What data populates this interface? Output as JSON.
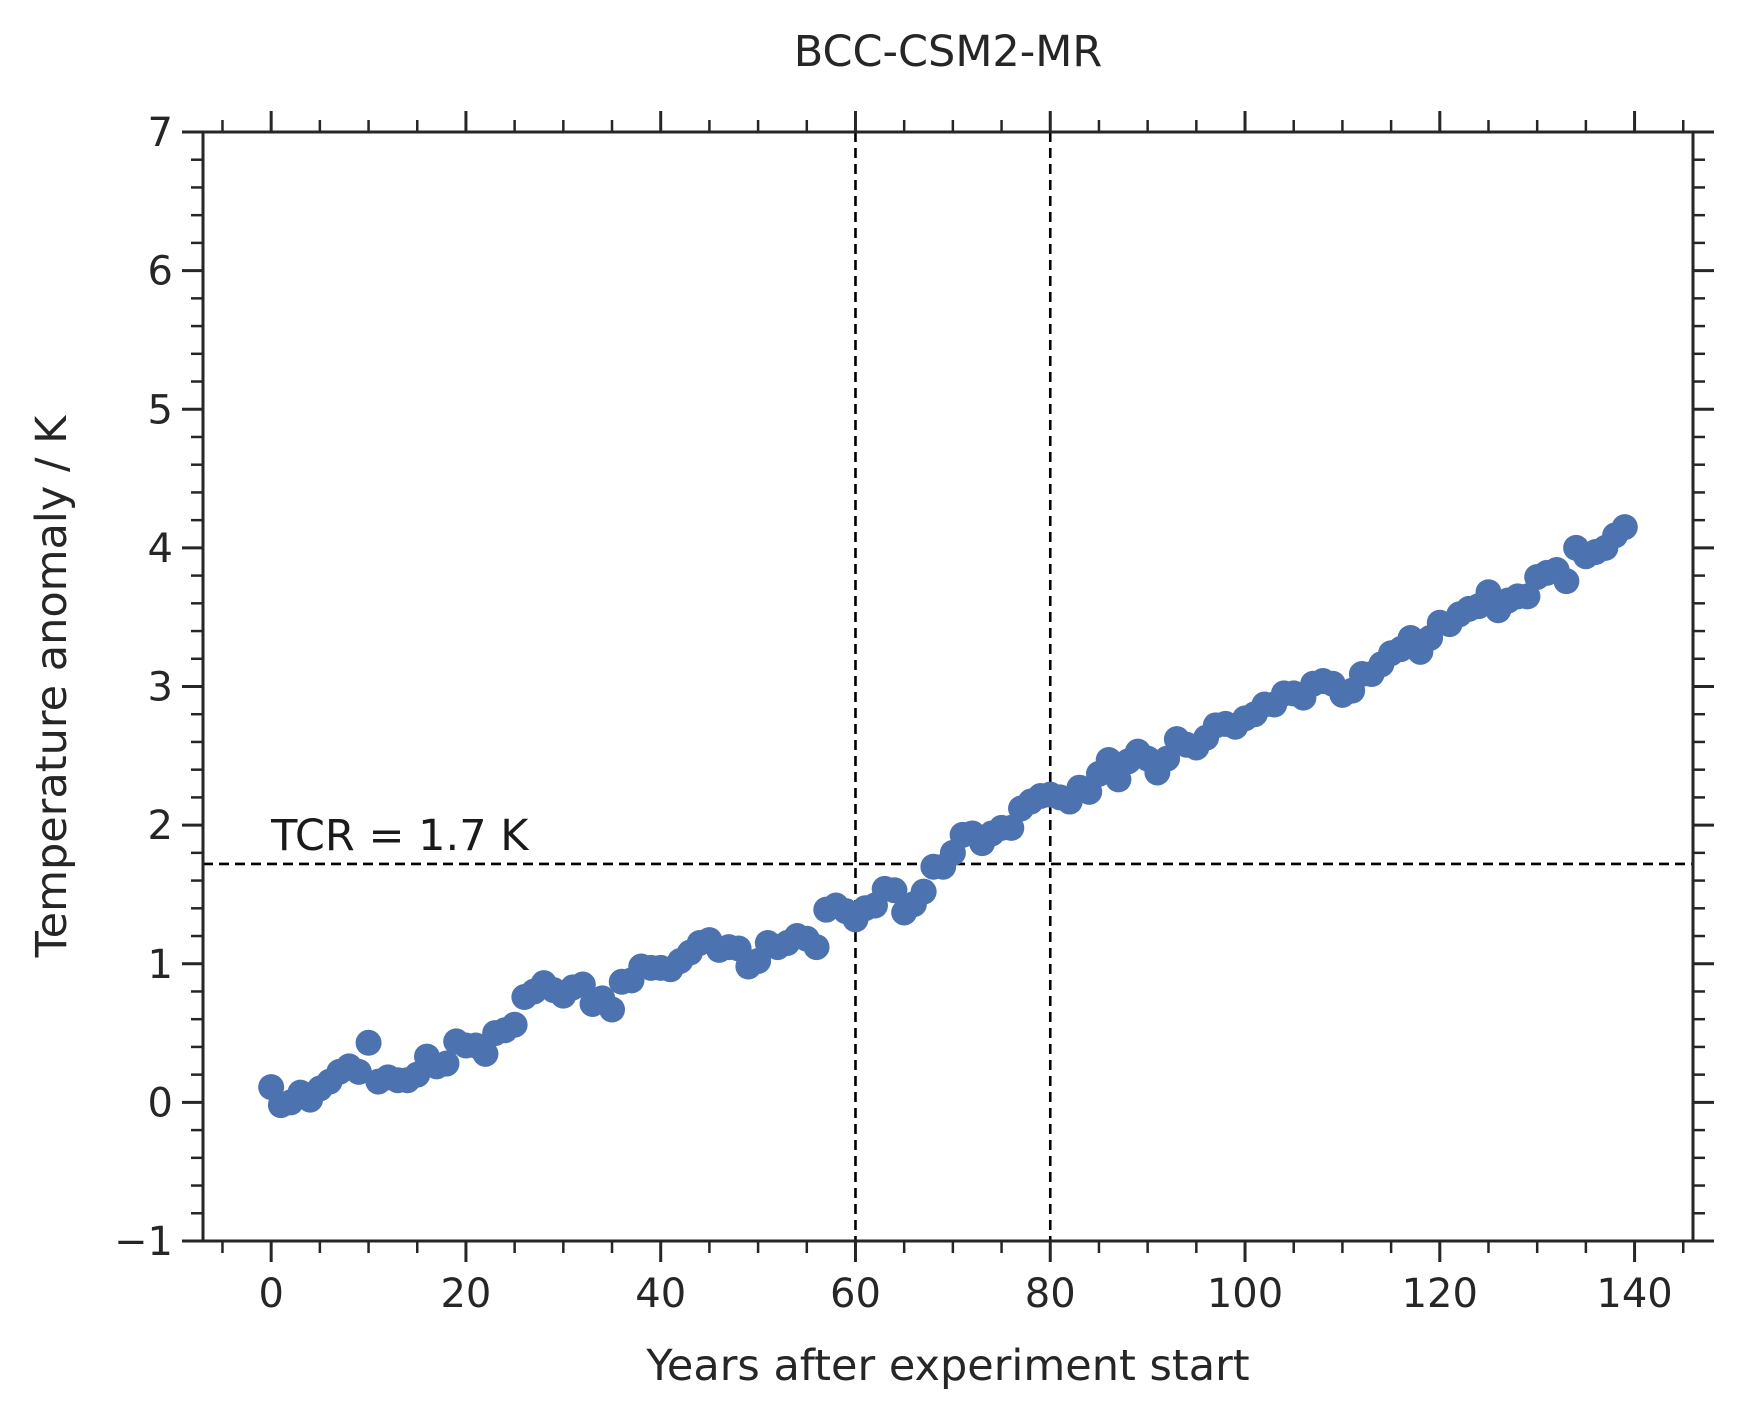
{
  "chart_data": {
    "type": "scatter",
    "title": "BCC-CSM2-MR",
    "xlabel": "Years after experiment start",
    "ylabel": "Temperature anomaly / K",
    "xlim": [
      -7,
      146
    ],
    "ylim": [
      -1,
      7
    ],
    "xticks": [
      0,
      20,
      40,
      60,
      80,
      100,
      120,
      140
    ],
    "xtick_labels": [
      "0",
      "20",
      "40",
      "60",
      "80",
      "100",
      "120",
      "140"
    ],
    "yticks": [
      -1,
      0,
      1,
      2,
      3,
      4,
      5,
      6,
      7
    ],
    "ytick_labels": [
      "−1",
      "0",
      "1",
      "2",
      "3",
      "4",
      "5",
      "6",
      "7"
    ],
    "grid": false,
    "marker_color": "#4c72b0",
    "reference_lines": {
      "vertical_x": [
        60,
        80
      ],
      "horizontal_y": 1.72,
      "style": "dashed",
      "color": "#000000"
    },
    "annotation": {
      "text": "TCR = 1.7 K",
      "x": 0,
      "y": 1.72
    },
    "series": [
      {
        "x": [
          0,
          1,
          2,
          3,
          4,
          5,
          6,
          7,
          8,
          9,
          10,
          11,
          12,
          13,
          14,
          15,
          16,
          17,
          18,
          19,
          20,
          21,
          22,
          23,
          24,
          25,
          26,
          27,
          28,
          29,
          30,
          31,
          32,
          33,
          34,
          35,
          36,
          37,
          38,
          39,
          40,
          41,
          42,
          43,
          44,
          45,
          46,
          47,
          48,
          49,
          50,
          51,
          52,
          53,
          54,
          55,
          56,
          57,
          58,
          59,
          60,
          61,
          62,
          63,
          64,
          65,
          66,
          67,
          68,
          69,
          70,
          71,
          72,
          73,
          74,
          75,
          76,
          77,
          78,
          79,
          80,
          81,
          82,
          83,
          84,
          85,
          86,
          87,
          88,
          89,
          90,
          91,
          92,
          93,
          94,
          95,
          96,
          97,
          98,
          99,
          100,
          101,
          102,
          103,
          104,
          105,
          106,
          107,
          108,
          109,
          110,
          111,
          112,
          113,
          114,
          115,
          116,
          117,
          118,
          119,
          120,
          121,
          122,
          123,
          124,
          125,
          126,
          127,
          128,
          129,
          130,
          131,
          132,
          133,
          134,
          135,
          136,
          137,
          138,
          139
        ],
        "y": [
          0.11,
          -0.02,
          0.0,
          0.07,
          0.02,
          0.1,
          0.15,
          0.22,
          0.26,
          0.22,
          0.43,
          0.15,
          0.18,
          0.16,
          0.16,
          0.2,
          0.33,
          0.26,
          0.28,
          0.44,
          0.41,
          0.41,
          0.35,
          0.5,
          0.52,
          0.56,
          0.76,
          0.8,
          0.86,
          0.81,
          0.77,
          0.83,
          0.85,
          0.71,
          0.75,
          0.67,
          0.87,
          0.88,
          0.98,
          0.97,
          0.97,
          0.96,
          1.02,
          1.08,
          1.15,
          1.17,
          1.1,
          1.12,
          1.11,
          0.98,
          1.02,
          1.15,
          1.12,
          1.15,
          1.2,
          1.18,
          1.12,
          1.39,
          1.42,
          1.38,
          1.32,
          1.4,
          1.42,
          1.54,
          1.53,
          1.37,
          1.43,
          1.52,
          1.7,
          1.7,
          1.8,
          1.93,
          1.94,
          1.87,
          1.94,
          1.98,
          1.98,
          2.12,
          2.17,
          2.21,
          2.22,
          2.2,
          2.17,
          2.27,
          2.24,
          2.37,
          2.47,
          2.33,
          2.46,
          2.53,
          2.48,
          2.38,
          2.48,
          2.62,
          2.58,
          2.56,
          2.63,
          2.72,
          2.73,
          2.71,
          2.77,
          2.8,
          2.87,
          2.87,
          2.95,
          2.95,
          2.92,
          3.02,
          3.04,
          3.02,
          2.94,
          2.97,
          3.09,
          3.09,
          3.16,
          3.24,
          3.27,
          3.35,
          3.25,
          3.35,
          3.46,
          3.45,
          3.52,
          3.56,
          3.58,
          3.68,
          3.55,
          3.62,
          3.65,
          3.65,
          3.79,
          3.82,
          3.84,
          3.76,
          4.0,
          3.94,
          3.97,
          4.0,
          4.09,
          4.15
        ]
      }
    ]
  }
}
